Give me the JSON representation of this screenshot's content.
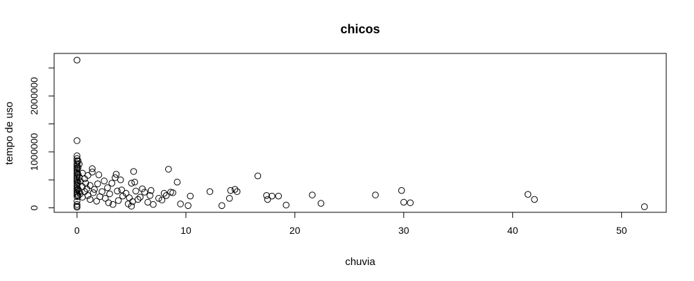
{
  "chart_data": {
    "type": "scatter",
    "title": "chicos",
    "xlabel": "chuvia",
    "ylabel": "tempo de uso",
    "xlim": [
      -2.1,
      54.1
    ],
    "ylim": [
      -80000,
      2760000
    ],
    "x_ticks": [
      0,
      10,
      20,
      30,
      40,
      50
    ],
    "x_tick_labels": [
      "0",
      "10",
      "20",
      "30",
      "40",
      "50"
    ],
    "y_ticks": [
      0,
      1000000,
      2000000
    ],
    "y_tick_labels": [
      "0",
      "1000000",
      "2000000"
    ],
    "grid": false,
    "legend": "none",
    "marker": "open-circle",
    "color": "#000000",
    "points": [
      {
        "x": 0,
        "y": 2640000
      },
      {
        "x": 0,
        "y": 1200000
      },
      {
        "x": 0,
        "y": 930000
      },
      {
        "x": 0,
        "y": 880000
      },
      {
        "x": 0,
        "y": 840000
      },
      {
        "x": 0,
        "y": 800000
      },
      {
        "x": 0,
        "y": 770000
      },
      {
        "x": 0,
        "y": 740000
      },
      {
        "x": 0,
        "y": 710000
      },
      {
        "x": 0,
        "y": 680000
      },
      {
        "x": 0,
        "y": 650000
      },
      {
        "x": 0,
        "y": 620000
      },
      {
        "x": 0,
        "y": 590000
      },
      {
        "x": 0,
        "y": 560000
      },
      {
        "x": 0,
        "y": 530000
      },
      {
        "x": 0,
        "y": 500000
      },
      {
        "x": 0,
        "y": 470000
      },
      {
        "x": 0,
        "y": 440000
      },
      {
        "x": 0,
        "y": 410000
      },
      {
        "x": 0,
        "y": 380000
      },
      {
        "x": 0,
        "y": 350000
      },
      {
        "x": 0,
        "y": 320000
      },
      {
        "x": 0,
        "y": 290000
      },
      {
        "x": 0,
        "y": 260000
      },
      {
        "x": 0,
        "y": 230000
      },
      {
        "x": 0,
        "y": 200000
      },
      {
        "x": 0,
        "y": 120000
      },
      {
        "x": 0,
        "y": 60000
      },
      {
        "x": 0,
        "y": 30000
      },
      {
        "x": 0,
        "y": 10000
      },
      {
        "x": 0.1,
        "y": 840000
      },
      {
        "x": 0.1,
        "y": 720000
      },
      {
        "x": 0.1,
        "y": 600000
      },
      {
        "x": 0.1,
        "y": 450000
      },
      {
        "x": 0.1,
        "y": 330000
      },
      {
        "x": 0.1,
        "y": 210000
      },
      {
        "x": 0.2,
        "y": 780000
      },
      {
        "x": 0.2,
        "y": 550000
      },
      {
        "x": 0.2,
        "y": 300000
      },
      {
        "x": 0.3,
        "y": 480000
      },
      {
        "x": 0.3,
        "y": 250000
      },
      {
        "x": 0.5,
        "y": 620000
      },
      {
        "x": 0.5,
        "y": 380000
      },
      {
        "x": 0.5,
        "y": 190000
      },
      {
        "x": 0.7,
        "y": 520000
      },
      {
        "x": 0.7,
        "y": 290000
      },
      {
        "x": 0.8,
        "y": 440000
      },
      {
        "x": 0.9,
        "y": 340000
      },
      {
        "x": 1.0,
        "y": 580000
      },
      {
        "x": 1.0,
        "y": 220000
      },
      {
        "x": 1.2,
        "y": 400000
      },
      {
        "x": 1.2,
        "y": 150000
      },
      {
        "x": 1.4,
        "y": 700000
      },
      {
        "x": 1.4,
        "y": 640000
      },
      {
        "x": 1.5,
        "y": 270000
      },
      {
        "x": 1.6,
        "y": 330000
      },
      {
        "x": 1.8,
        "y": 120000
      },
      {
        "x": 1.9,
        "y": 430000
      },
      {
        "x": 2.0,
        "y": 590000
      },
      {
        "x": 2.1,
        "y": 200000
      },
      {
        "x": 2.3,
        "y": 290000
      },
      {
        "x": 2.5,
        "y": 480000
      },
      {
        "x": 2.6,
        "y": 170000
      },
      {
        "x": 2.8,
        "y": 360000
      },
      {
        "x": 2.9,
        "y": 90000
      },
      {
        "x": 3.0,
        "y": 250000
      },
      {
        "x": 3.2,
        "y": 440000
      },
      {
        "x": 3.3,
        "y": 60000
      },
      {
        "x": 3.5,
        "y": 540000
      },
      {
        "x": 3.6,
        "y": 600000
      },
      {
        "x": 3.7,
        "y": 300000
      },
      {
        "x": 3.8,
        "y": 130000
      },
      {
        "x": 4.0,
        "y": 500000
      },
      {
        "x": 4.1,
        "y": 320000
      },
      {
        "x": 4.2,
        "y": 210000
      },
      {
        "x": 4.5,
        "y": 260000
      },
      {
        "x": 4.7,
        "y": 70000
      },
      {
        "x": 4.8,
        "y": 180000
      },
      {
        "x": 5.0,
        "y": 440000
      },
      {
        "x": 5.0,
        "y": 30000
      },
      {
        "x": 5.1,
        "y": 110000
      },
      {
        "x": 5.2,
        "y": 650000
      },
      {
        "x": 5.3,
        "y": 460000
      },
      {
        "x": 5.4,
        "y": 300000
      },
      {
        "x": 5.6,
        "y": 150000
      },
      {
        "x": 5.8,
        "y": 190000
      },
      {
        "x": 6.0,
        "y": 340000
      },
      {
        "x": 6.2,
        "y": 280000
      },
      {
        "x": 6.5,
        "y": 100000
      },
      {
        "x": 6.7,
        "y": 220000
      },
      {
        "x": 6.8,
        "y": 310000
      },
      {
        "x": 7.0,
        "y": 60000
      },
      {
        "x": 7.5,
        "y": 170000
      },
      {
        "x": 7.8,
        "y": 140000
      },
      {
        "x": 8.0,
        "y": 260000
      },
      {
        "x": 8.2,
        "y": 220000
      },
      {
        "x": 8.4,
        "y": 690000
      },
      {
        "x": 8.6,
        "y": 280000
      },
      {
        "x": 8.8,
        "y": 270000
      },
      {
        "x": 9.2,
        "y": 460000
      },
      {
        "x": 9.5,
        "y": 70000
      },
      {
        "x": 10.2,
        "y": 40000
      },
      {
        "x": 10.4,
        "y": 210000
      },
      {
        "x": 12.2,
        "y": 290000
      },
      {
        "x": 13.3,
        "y": 40000
      },
      {
        "x": 14.0,
        "y": 170000
      },
      {
        "x": 14.1,
        "y": 310000
      },
      {
        "x": 14.5,
        "y": 330000
      },
      {
        "x": 14.7,
        "y": 290000
      },
      {
        "x": 16.6,
        "y": 570000
      },
      {
        "x": 17.4,
        "y": 220000
      },
      {
        "x": 17.5,
        "y": 150000
      },
      {
        "x": 17.9,
        "y": 210000
      },
      {
        "x": 18.5,
        "y": 210000
      },
      {
        "x": 19.2,
        "y": 50000
      },
      {
        "x": 21.6,
        "y": 230000
      },
      {
        "x": 22.4,
        "y": 80000
      },
      {
        "x": 27.4,
        "y": 230000
      },
      {
        "x": 29.8,
        "y": 310000
      },
      {
        "x": 30.0,
        "y": 100000
      },
      {
        "x": 30.6,
        "y": 90000
      },
      {
        "x": 41.4,
        "y": 240000
      },
      {
        "x": 42.0,
        "y": 150000
      },
      {
        "x": 52.1,
        "y": 20000
      }
    ]
  }
}
